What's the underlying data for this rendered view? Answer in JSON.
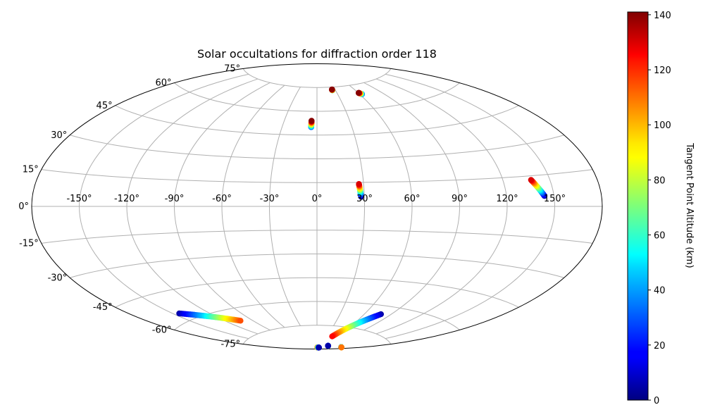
{
  "chart_data": {
    "type": "scatter",
    "projection": "aitoff",
    "title": "Solar occultations for diffraction order 118",
    "x_tick_labels": [
      {
        "value": -150,
        "label": "-150°"
      },
      {
        "value": -120,
        "label": "-120°"
      },
      {
        "value": -90,
        "label": "-90°"
      },
      {
        "value": -60,
        "label": "-60°"
      },
      {
        "value": -30,
        "label": "-30°"
      },
      {
        "value": 0,
        "label": "0°"
      },
      {
        "value": 30,
        "label": "30°"
      },
      {
        "value": 60,
        "label": "60°"
      },
      {
        "value": 90,
        "label": "90°"
      },
      {
        "value": 120,
        "label": "120°"
      },
      {
        "value": 150,
        "label": "150°"
      }
    ],
    "y_tick_labels": [
      {
        "value": 75,
        "label": "75°"
      },
      {
        "value": 60,
        "label": "60°"
      },
      {
        "value": 45,
        "label": "45°"
      },
      {
        "value": 30,
        "label": "30°"
      },
      {
        "value": 15,
        "label": "15°"
      },
      {
        "value": 0,
        "label": "0°"
      },
      {
        "value": -15,
        "label": "-15°"
      },
      {
        "value": -30,
        "label": "-30°"
      },
      {
        "value": -45,
        "label": "-45°"
      },
      {
        "value": -60,
        "label": "-60°"
      },
      {
        "value": -75,
        "label": "-75°"
      }
    ],
    "grid": true,
    "colormap": "jet",
    "colorbar": {
      "label": "Tangent Point Altitude (km)",
      "range": [
        0,
        141
      ],
      "ticks": [
        {
          "value": 0,
          "label": "0"
        },
        {
          "value": 20,
          "label": "20"
        },
        {
          "value": 40,
          "label": "40"
        },
        {
          "value": 60,
          "label": "60"
        },
        {
          "value": 80,
          "label": "80"
        },
        {
          "value": 100,
          "label": "100"
        },
        {
          "value": 120,
          "label": "120"
        },
        {
          "value": 140,
          "label": "140"
        }
      ],
      "placement": "right"
    },
    "tracks": [
      {
        "lon_start": -5,
        "lat_start": 50,
        "lon_end": -5,
        "lat_end": 54,
        "alt_start": 30,
        "alt_end": 140
      },
      {
        "lon_start": 25,
        "lat_start": 73,
        "lon_end": 25,
        "lat_end": 73.5,
        "alt_start": 60,
        "alt_end": 140
      },
      {
        "lon_start": 63,
        "lat_start": 69,
        "lon_end": 60.5,
        "lat_end": 70,
        "alt_start": 30,
        "alt_end": 140
      },
      {
        "lon_start": 28,
        "lat_start": 6,
        "lon_end": 27,
        "lat_end": 14,
        "alt_start": 0,
        "alt_end": 130
      },
      {
        "lon_start": 144,
        "lat_start": 5,
        "lon_end": 138,
        "lat_end": 13,
        "alt_start": 5,
        "alt_end": 130
      },
      {
        "lon_start": -145,
        "lat_start": -56,
        "lon_end": -104,
        "lat_end": -67,
        "alt_start": 5,
        "alt_end": 115
      },
      {
        "lon_start": 79,
        "lat_start": -65,
        "lon_end": 46,
        "lat_end": -81.5,
        "alt_start": 5,
        "alt_end": 125
      },
      {
        "lon_start": 8,
        "lat_start": -89,
        "lon_end": 46,
        "lat_end": -89,
        "alt_start": 120,
        "alt_end": 5
      },
      {
        "lon_start": 100,
        "lat_start": -87,
        "lon_end": 98,
        "lat_end": -87,
        "alt_start": 110,
        "alt_end": 5
      },
      {
        "lon_start": 160,
        "lat_start": -85,
        "lon_end": 164,
        "lat_end": -85,
        "alt_start": 5,
        "alt_end": 110
      }
    ]
  }
}
